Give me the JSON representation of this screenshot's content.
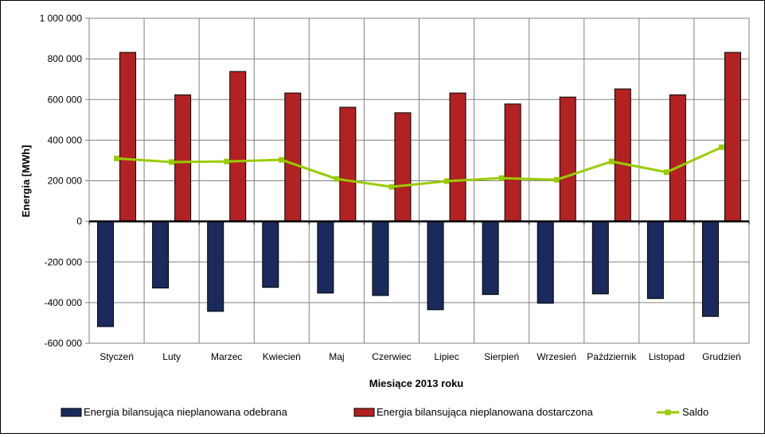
{
  "chart_data": {
    "type": "bar",
    "title": "",
    "xlabel": "Miesiące 2013 roku",
    "ylabel": "Energia [MWh]",
    "ylim": [
      -600000,
      1000000
    ],
    "yticks": [
      "1 000 000",
      "800 000",
      "600 000",
      "400 000",
      "200 000",
      "0",
      "-200 000",
      "-400 000",
      "-600 000"
    ],
    "grid": true,
    "legend_position": "bottom",
    "categories": [
      "Styczeń",
      "Luty",
      "Marzec",
      "Kwiecień",
      "Maj",
      "Czerwiec",
      "Lipiec",
      "Sierpień",
      "Wrzesień",
      "Październik",
      "Listopad",
      "Grudzień"
    ],
    "series": [
      {
        "name": "Energia bilansująca nieplanowana odebrana",
        "type": "bar",
        "color": "#1b2a5c",
        "values": [
          -518000,
          -328000,
          -443000,
          -325000,
          -353000,
          -365000,
          -435000,
          -360000,
          -403000,
          -357000,
          -380000,
          -468000
        ]
      },
      {
        "name": "Energia bilansująca nieplanowana dostarczona",
        "type": "bar",
        "color": "#b22222",
        "values": [
          832000,
          623000,
          738000,
          632000,
          562000,
          535000,
          632000,
          578000,
          612000,
          652000,
          623000,
          832000
        ]
      },
      {
        "name": "Saldo",
        "type": "line",
        "color": "#99cc00",
        "values": [
          310000,
          292000,
          295000,
          303000,
          209000,
          170000,
          198000,
          213000,
          205000,
          295000,
          242000,
          365000
        ]
      }
    ]
  }
}
